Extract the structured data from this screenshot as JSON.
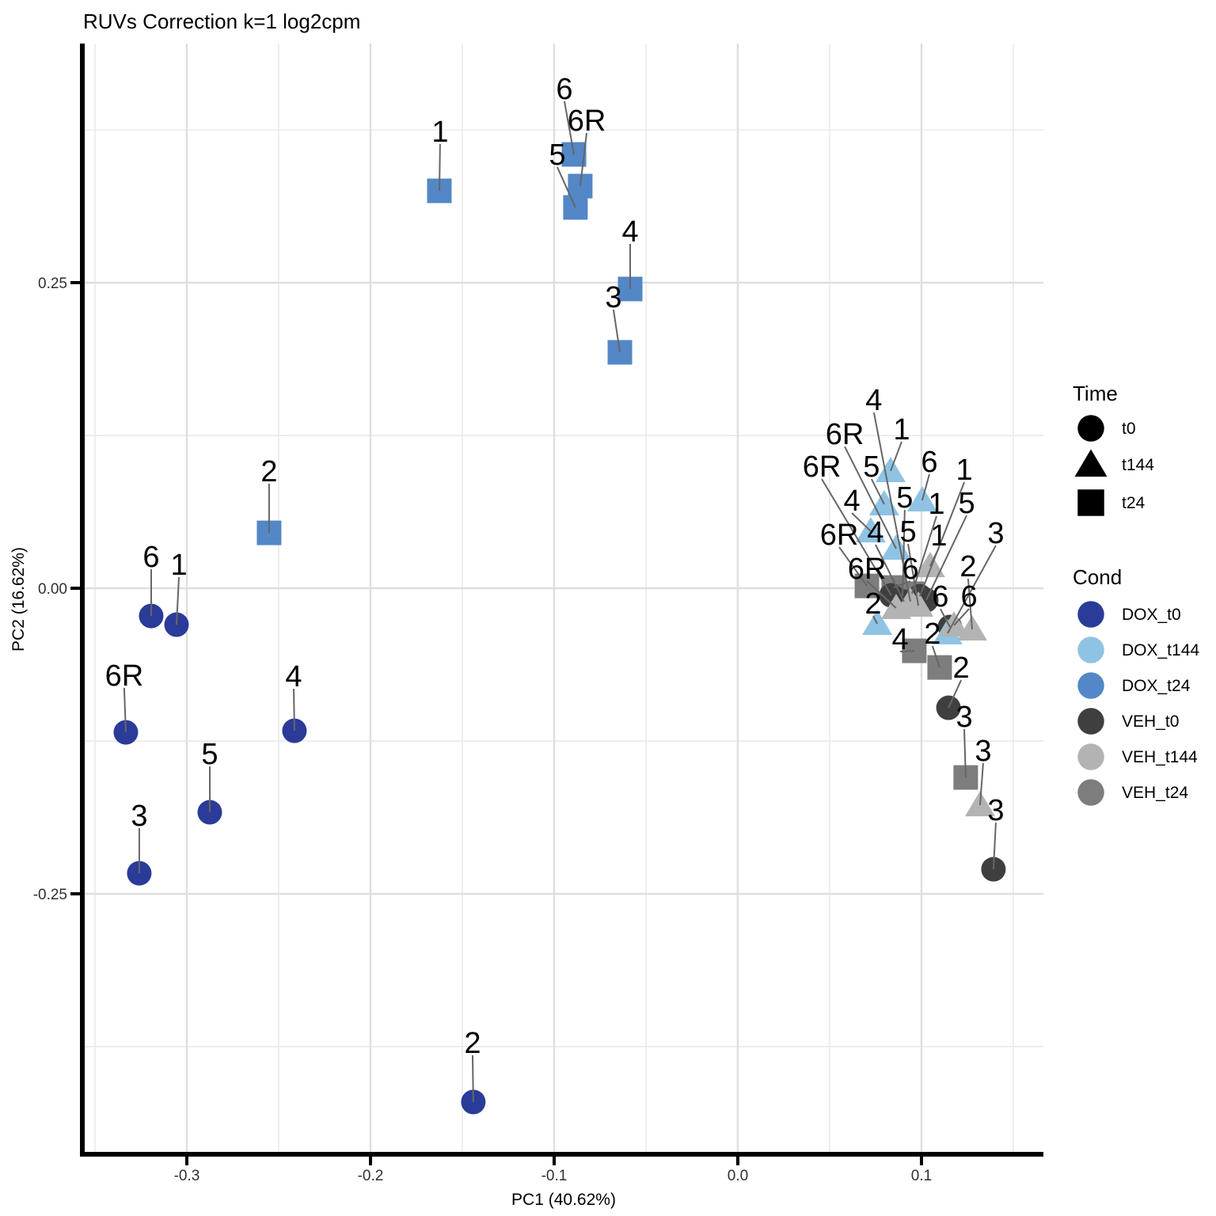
{
  "title": "RUVs Correction k=1 log2cpm",
  "axes": {
    "x_label": "PC1 (40.62%)",
    "y_label": "PC2 (16.62%)"
  },
  "legend": {
    "time": {
      "title": "Time",
      "items": [
        {
          "label": "t0",
          "shape": "circle"
        },
        {
          "label": "t144",
          "shape": "triangle"
        },
        {
          "label": "t24",
          "shape": "square"
        }
      ]
    },
    "cond": {
      "title": "Cond",
      "items": [
        {
          "label": "DOX_t0",
          "color": "#2B3B98"
        },
        {
          "label": "DOX_t144",
          "color": "#8FC3E4"
        },
        {
          "label": "DOX_t24",
          "color": "#5387C6"
        },
        {
          "label": "VEH_t0",
          "color": "#3F3F3F"
        },
        {
          "label": "VEH_t144",
          "color": "#B3B3B3"
        },
        {
          "label": "VEH_t24",
          "color": "#7D7D7D"
        }
      ]
    }
  },
  "chart_data": {
    "type": "scatter",
    "title": "RUVs Correction k=1 log2cpm",
    "xlabel": "PC1 (40.62%)",
    "ylabel": "PC2 (16.62%)",
    "xlim": [
      -0.3556,
      0.1664
    ],
    "ylim": [
      -0.4611,
      0.4456
    ],
    "grid": "on",
    "legend_position": "right",
    "x_ticks": [
      {
        "v": -0.3,
        "label": "-0.3"
      },
      {
        "v": -0.2,
        "label": "-0.2"
      },
      {
        "v": -0.1,
        "label": "-0.1"
      },
      {
        "v": 0.0,
        "label": "0.0"
      },
      {
        "v": 0.1,
        "label": "0.1"
      }
    ],
    "y_ticks": [
      {
        "v": 0.25,
        "label": "0.25"
      },
      {
        "v": 0.0,
        "label": "0.00"
      },
      {
        "v": -0.25,
        "label": "-0.25"
      }
    ],
    "x_minor_ticks": [
      -0.35,
      -0.25,
      -0.15,
      -0.05,
      0.05,
      0.15
    ],
    "y_minor_ticks": [
      0.375,
      0.125,
      -0.125,
      -0.375
    ],
    "cond_colors": {
      "DOX_t0": "#2B3B98",
      "DOX_t144": "#8FC3E4",
      "DOX_t24": "#5387C6",
      "VEH_t0": "#3F3F3F",
      "VEH_t144": "#B3B3B3",
      "VEH_t24": "#7D7D7D"
    },
    "time_shapes": {
      "t0": "circle",
      "t144": "triangle",
      "t24": "square"
    },
    "points": [
      {
        "g": "DOX_t0",
        "t": "t0",
        "s": "6",
        "x": -0.3194,
        "y": -0.0227,
        "lx": -0.3194,
        "ly": 0.0259
      },
      {
        "g": "DOX_t0",
        "t": "t0",
        "s": "1",
        "x": -0.3056,
        "y": -0.0298,
        "lx": -0.3043,
        "ly": 0.0194
      },
      {
        "g": "DOX_t0",
        "t": "t0",
        "s": "6R",
        "x": -0.3332,
        "y": -0.1179,
        "lx": -0.3341,
        "ly": -0.0712
      },
      {
        "g": "DOX_t0",
        "t": "t0",
        "s": "4",
        "x": -0.2414,
        "y": -0.1166,
        "lx": -0.2418,
        "ly": -0.0719
      },
      {
        "g": "DOX_t0",
        "t": "t0",
        "s": "5",
        "x": -0.2875,
        "y": -0.1833,
        "lx": -0.2875,
        "ly": -0.1354
      },
      {
        "g": "DOX_t0",
        "t": "t0",
        "s": "3",
        "x": -0.3259,
        "y": -0.2332,
        "lx": -0.3259,
        "ly": -0.1859
      },
      {
        "g": "DOX_t0",
        "t": "t0",
        "s": "2",
        "x": -0.144,
        "y": -0.4203,
        "lx": -0.1444,
        "ly": -0.3717
      },
      {
        "g": "DOX_t24",
        "t": "t24",
        "s": "1",
        "x": -0.1625,
        "y": 0.3251,
        "lx": -0.1621,
        "ly": 0.3737
      },
      {
        "g": "DOX_t24",
        "t": "t24",
        "s": "6",
        "x": -0.0892,
        "y": 0.3549,
        "lx": -0.0944,
        "ly": 0.4087
      },
      {
        "g": "DOX_t24",
        "t": "t24",
        "s": "6R",
        "x": -0.0858,
        "y": 0.329,
        "lx": -0.0823,
        "ly": 0.3828
      },
      {
        "g": "DOX_t24",
        "t": "t24",
        "s": "5",
        "x": -0.0884,
        "y": 0.3115,
        "lx": -0.0983,
        "ly": 0.3549
      },
      {
        "g": "DOX_t24",
        "t": "t24",
        "s": "4",
        "x": -0.0586,
        "y": 0.2448,
        "lx": -0.0586,
        "ly": 0.2921
      },
      {
        "g": "DOX_t24",
        "t": "t24",
        "s": "3",
        "x": -0.0642,
        "y": 0.193,
        "lx": -0.0677,
        "ly": 0.2383
      },
      {
        "g": "DOX_t24",
        "t": "t24",
        "s": "2",
        "x": -0.2552,
        "y": 0.0453,
        "lx": -0.2552,
        "ly": 0.0959
      },
      {
        "g": "VEH_t24",
        "t": "t24",
        "s": "6R",
        "x": 0.0703,
        "y": 0.0019,
        "lx": 0.0552,
        "ly": 0.044
      },
      {
        "g": "VEH_t24",
        "t": "t24",
        "s": "6",
        "x": 0.0849,
        "y": 0.0006,
        "lx": 0.094,
        "ly": 0.0162
      },
      {
        "g": "VEH_t24",
        "t": "t24",
        "s": "1",
        "x": 0.0948,
        "y": -0.0045,
        "lx": 0.1082,
        "ly": 0.0693
      },
      {
        "g": "VEH_t24",
        "t": "t24",
        "s": "5",
        "x": 0.0897,
        "y": -0.0065,
        "lx": 0.0909,
        "ly": 0.0745
      },
      {
        "g": "VEH_t0",
        "t": "t0",
        "s": "6R",
        "x": 0.0836,
        "y": -0.0058,
        "lx": 0.0457,
        "ly": 0.0997
      },
      {
        "g": "VEH_t0",
        "t": "t0",
        "s": "4",
        "x": 0.0905,
        "y": -0.011,
        "lx": 0.075,
        "ly": 0.046
      },
      {
        "g": "VEH_t0",
        "t": "t0",
        "s": "1",
        "x": 0.0991,
        "y": -0.0065,
        "lx": 0.1233,
        "ly": 0.0971
      },
      {
        "g": "VEH_t0",
        "t": "t0",
        "s": "5",
        "x": 0.1026,
        "y": -0.0097,
        "lx": 0.1246,
        "ly": 0.0699
      },
      {
        "g": "VEH_t144",
        "t": "t144",
        "s": "4",
        "x": 0.094,
        "y": -0.011,
        "lx": 0.0741,
        "ly": 0.1541
      },
      {
        "g": "VEH_t144",
        "t": "t144",
        "s": "5",
        "x": 0.0983,
        "y": -0.0142,
        "lx": 0.0927,
        "ly": 0.0466
      },
      {
        "g": "VEH_t144",
        "t": "t144",
        "s": "6R",
        "x": 0.0862,
        "y": -0.0162,
        "lx": 0.0703,
        "ly": 0.0162
      },
      {
        "g": "VEH_t144",
        "t": "t144",
        "s": "1",
        "x": 0.1047,
        "y": 0.0181,
        "lx": 0.1095,
        "ly": 0.0434
      },
      {
        "g": "VEH_t0",
        "t": "t0",
        "s": "6",
        "x": 0.1155,
        "y": -0.0317,
        "lx": 0.1103,
        "ly": -0.0065
      },
      {
        "g": "DOX_t144",
        "t": "t144",
        "s": "1",
        "x": 0.0832,
        "y": 0.0959,
        "lx": 0.0892,
        "ly": 0.1302
      },
      {
        "g": "DOX_t144",
        "t": "t144",
        "s": "5",
        "x": 0.0797,
        "y": 0.0687,
        "lx": 0.0728,
        "ly": 0.0997
      },
      {
        "g": "DOX_t144",
        "t": "t144",
        "s": "6",
        "x": 0.1004,
        "y": 0.0719,
        "lx": 0.1043,
        "ly": 0.1036
      },
      {
        "g": "DOX_t144",
        "t": "t144",
        "s": "4",
        "x": 0.0724,
        "y": 0.0466,
        "lx": 0.0621,
        "ly": 0.0719
      },
      {
        "g": "DOX_t144",
        "t": "t144",
        "s": "6R",
        "x": 0.0862,
        "y": 0.0324,
        "lx": 0.0582,
        "ly": 0.1263
      },
      {
        "g": "DOX_t144",
        "t": "t144",
        "s": "2",
        "x": 0.0759,
        "y": -0.0291,
        "lx": 0.0737,
        "ly": -0.0123
      },
      {
        "g": "DOX_t144",
        "t": "t144",
        "s": "3",
        "x": 0.1142,
        "y": -0.0369,
        "lx": 0.1405,
        "ly": 0.0453
      },
      {
        "g": "VEH_t144",
        "t": "t144",
        "s": "6",
        "x": 0.1177,
        "y": -0.0304,
        "lx": 0.1259,
        "ly": -0.0065
      },
      {
        "g": "VEH_t144",
        "t": "t144",
        "s": "2",
        "x": 0.1276,
        "y": -0.0337,
        "lx": 0.1254,
        "ly": 0.0181
      },
      {
        "g": "VEH_t24",
        "t": "t24",
        "s": "4",
        "x": 0.0961,
        "y": -0.0512,
        "lx": 0.0884,
        "ly": -0.0414
      },
      {
        "g": "VEH_t24",
        "t": "t24",
        "s": "2",
        "x": 0.1099,
        "y": -0.0648,
        "lx": 0.106,
        "ly": -0.0369
      },
      {
        "g": "VEH_t0",
        "t": "t0",
        "s": "2",
        "x": 0.1147,
        "y": -0.0978,
        "lx": 0.1216,
        "ly": -0.0648
      },
      {
        "g": "VEH_t24",
        "t": "t24",
        "s": "3",
        "x": 0.1241,
        "y": -0.1548,
        "lx": 0.1233,
        "ly": -0.1049
      },
      {
        "g": "VEH_t144",
        "t": "t144",
        "s": "3",
        "x": 0.1319,
        "y": -0.1775,
        "lx": 0.1336,
        "ly": -0.1328
      },
      {
        "g": "VEH_t0",
        "t": "t0",
        "s": "3",
        "x": 0.1392,
        "y": -0.2299,
        "lx": 0.1405,
        "ly": -0.1814
      }
    ]
  }
}
